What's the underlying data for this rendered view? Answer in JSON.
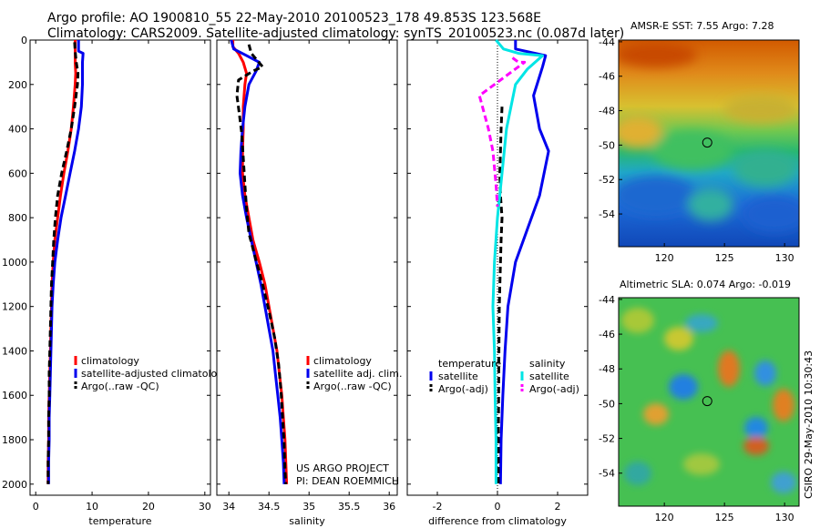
{
  "figure": {
    "title_line1": "Argo profile: AO 1900810_55 22-May-2010 20100523_178 49.853S 123.568E",
    "title_line2": "Climatology: CARS2009. Satellite-adjusted climatology: synTS_20100523.nc (0.087d later)",
    "credit_line1": "US ARGO PROJECT",
    "credit_line2": "PI: DEAN ROEMMICH",
    "timestamp": "CSIRO 29-May-2010 10:30:43"
  },
  "colors": {
    "climatology": "#ff0000",
    "satellite_adjusted": "#0000ee",
    "argo": "#000000",
    "temperature_diff_satellite": "#0000ee",
    "temperature_diff_argo": "#000000",
    "salinity_diff_satellite": "#00e5e5",
    "salinity_diff_argo": "#ff00ff"
  },
  "chart_data": [
    {
      "type": "line",
      "xlabel": "temperature",
      "ylabel": "",
      "xlim": [
        -1,
        31
      ],
      "ylim": [
        2050,
        0
      ],
      "xticks": [
        0,
        10,
        20,
        30
      ],
      "yticks": [
        0,
        200,
        400,
        600,
        800,
        1000,
        1200,
        1400,
        1600,
        1800,
        2000
      ],
      "legend": [
        "climatology",
        "satellite-adjusted climatolo",
        "Argo(..raw -QC)"
      ],
      "series": [
        {
          "name": "climatology",
          "style": "solid",
          "colorKey": "climatology",
          "points": [
            [
              7.0,
              0
            ],
            [
              7.0,
              50
            ],
            [
              7.0,
              100
            ],
            [
              7.1,
              150
            ],
            [
              7.0,
              200
            ],
            [
              6.7,
              300
            ],
            [
              6.3,
              400
            ],
            [
              5.7,
              500
            ],
            [
              5.0,
              600
            ],
            [
              4.4,
              700
            ],
            [
              3.9,
              800
            ],
            [
              3.4,
              900
            ],
            [
              3.1,
              1000
            ],
            [
              2.9,
              1100
            ],
            [
              2.8,
              1200
            ],
            [
              2.7,
              1300
            ],
            [
              2.6,
              1400
            ],
            [
              2.5,
              1500
            ],
            [
              2.4,
              1600
            ],
            [
              2.3,
              1700
            ],
            [
              2.3,
              1800
            ],
            [
              2.2,
              1900
            ],
            [
              2.2,
              2000
            ]
          ]
        },
        {
          "name": "satellite-adjusted climatolo",
          "style": "solid",
          "colorKey": "satellite_adjusted",
          "points": [
            [
              7.6,
              0
            ],
            [
              7.6,
              50
            ],
            [
              8.4,
              60
            ],
            [
              8.3,
              100
            ],
            [
              8.3,
              200
            ],
            [
              8.1,
              300
            ],
            [
              7.6,
              400
            ],
            [
              6.9,
              500
            ],
            [
              6.1,
              600
            ],
            [
              5.3,
              700
            ],
            [
              4.5,
              800
            ],
            [
              3.9,
              900
            ],
            [
              3.4,
              1000
            ],
            [
              3.1,
              1100
            ],
            [
              2.9,
              1200
            ],
            [
              2.8,
              1300
            ],
            [
              2.7,
              1400
            ],
            [
              2.6,
              1500
            ],
            [
              2.5,
              1600
            ],
            [
              2.4,
              1700
            ],
            [
              2.4,
              1800
            ],
            [
              2.3,
              1900
            ],
            [
              2.3,
              2000
            ]
          ]
        },
        {
          "name": "Argo(..raw -QC)",
          "style": "dashed",
          "colorKey": "argo",
          "points": [
            [
              6.9,
              10
            ],
            [
              7.0,
              50
            ],
            [
              7.2,
              100
            ],
            [
              7.5,
              150
            ],
            [
              7.4,
              200
            ],
            [
              6.9,
              300
            ],
            [
              6.3,
              400
            ],
            [
              5.5,
              500
            ],
            [
              4.6,
              600
            ],
            [
              3.9,
              700
            ],
            [
              3.5,
              800
            ],
            [
              3.2,
              900
            ],
            [
              3.0,
              1000
            ],
            [
              2.8,
              1100
            ],
            [
              2.7,
              1200
            ],
            [
              2.6,
              1300
            ],
            [
              2.5,
              1400
            ],
            [
              2.4,
              1500
            ],
            [
              2.4,
              1600
            ],
            [
              2.3,
              1700
            ],
            [
              2.3,
              1800
            ],
            [
              2.2,
              1900
            ],
            [
              2.2,
              2000
            ]
          ]
        }
      ]
    },
    {
      "type": "line",
      "xlabel": "salinity",
      "ylabel": "",
      "xlim": [
        33.85,
        36.1
      ],
      "ylim": [
        2050,
        0
      ],
      "xticks": [
        34,
        34.5,
        35,
        35.5,
        36
      ],
      "yticks": [
        0,
        200,
        400,
        600,
        800,
        1000,
        1200,
        1400,
        1600,
        1800,
        2000
      ],
      "legend": [
        "climatology",
        "satellite adj. clim.",
        "Argo(..raw -QC)"
      ],
      "series": [
        {
          "name": "climatology",
          "style": "solid",
          "colorKey": "climatology",
          "points": [
            [
              34.05,
              0
            ],
            [
              34.05,
              30
            ],
            [
              34.12,
              60
            ],
            [
              34.18,
              100
            ],
            [
              34.22,
              150
            ],
            [
              34.2,
              200
            ],
            [
              34.18,
              300
            ],
            [
              34.18,
              400
            ],
            [
              34.17,
              500
            ],
            [
              34.17,
              600
            ],
            [
              34.2,
              700
            ],
            [
              34.25,
              800
            ],
            [
              34.3,
              900
            ],
            [
              34.38,
              1000
            ],
            [
              34.45,
              1100
            ],
            [
              34.5,
              1200
            ],
            [
              34.55,
              1300
            ],
            [
              34.6,
              1400
            ],
            [
              34.63,
              1500
            ],
            [
              34.66,
              1600
            ],
            [
              34.68,
              1700
            ],
            [
              34.7,
              1800
            ],
            [
              34.71,
              1900
            ],
            [
              34.72,
              2000
            ]
          ]
        },
        {
          "name": "satellite adj. clim.",
          "style": "solid",
          "colorKey": "satellite_adjusted",
          "points": [
            [
              34.03,
              0
            ],
            [
              34.06,
              40
            ],
            [
              34.22,
              70
            ],
            [
              34.38,
              100
            ],
            [
              34.34,
              140
            ],
            [
              34.25,
              200
            ],
            [
              34.2,
              300
            ],
            [
              34.17,
              400
            ],
            [
              34.15,
              500
            ],
            [
              34.14,
              600
            ],
            [
              34.17,
              700
            ],
            [
              34.22,
              800
            ],
            [
              34.28,
              900
            ],
            [
              34.34,
              1000
            ],
            [
              34.4,
              1100
            ],
            [
              34.45,
              1200
            ],
            [
              34.5,
              1300
            ],
            [
              34.55,
              1400
            ],
            [
              34.58,
              1500
            ],
            [
              34.61,
              1600
            ],
            [
              34.64,
              1700
            ],
            [
              34.66,
              1800
            ],
            [
              34.68,
              1900
            ],
            [
              34.69,
              2000
            ]
          ]
        },
        {
          "name": "Argo(..raw -QC)",
          "style": "dashed",
          "colorKey": "argo",
          "points": [
            [
              34.25,
              20
            ],
            [
              34.28,
              60
            ],
            [
              34.42,
              120
            ],
            [
              34.3,
              140
            ],
            [
              34.12,
              180
            ],
            [
              34.1,
              250
            ],
            [
              34.13,
              330
            ],
            [
              34.16,
              420
            ],
            [
              34.18,
              530
            ],
            [
              34.2,
              650
            ],
            [
              34.22,
              760
            ],
            [
              34.25,
              870
            ],
            [
              34.33,
              980
            ],
            [
              34.42,
              1100
            ],
            [
              34.5,
              1220
            ],
            [
              34.57,
              1340
            ],
            [
              34.62,
              1460
            ],
            [
              34.65,
              1580
            ],
            [
              34.67,
              1700
            ],
            [
              34.69,
              1820
            ],
            [
              34.7,
              1940
            ],
            [
              34.71,
              2000
            ]
          ]
        }
      ]
    },
    {
      "type": "line",
      "xlabel": "difference from climatology",
      "ylabel": "",
      "xlim": [
        -3,
        3
      ],
      "ylim": [
        2050,
        0
      ],
      "xticks": [
        -2,
        0,
        2
      ],
      "yticks": [
        0,
        200,
        400,
        600,
        800,
        1000,
        1200,
        1400,
        1600,
        1800,
        2000
      ],
      "legend_groups": [
        {
          "title": "temperature",
          "items": [
            "satellite",
            "Argo(-adj)"
          ]
        },
        {
          "title": "salinity",
          "items": [
            "satellite",
            "Argo(-adj)"
          ]
        }
      ],
      "series": [
        {
          "name": "temperature satellite",
          "style": "solid",
          "colorKey": "temperature_diff_satellite",
          "points": [
            [
              0.6,
              0
            ],
            [
              0.6,
              40
            ],
            [
              1.6,
              70
            ],
            [
              1.5,
              120
            ],
            [
              1.2,
              250
            ],
            [
              1.4,
              400
            ],
            [
              1.7,
              500
            ],
            [
              1.4,
              700
            ],
            [
              1.0,
              850
            ],
            [
              0.6,
              1000
            ],
            [
              0.35,
              1200
            ],
            [
              0.25,
              1400
            ],
            [
              0.18,
              1600
            ],
            [
              0.12,
              1800
            ],
            [
              0.1,
              2000
            ]
          ]
        },
        {
          "name": "temperature Argo(-adj)",
          "style": "dashed",
          "colorKey": "temperature_diff_argo",
          "points": [
            [
              0.15,
              300
            ],
            [
              0.12,
              400
            ],
            [
              0.1,
              500
            ],
            [
              0.08,
              600
            ],
            [
              0.1,
              700
            ],
            [
              0.15,
              800
            ],
            [
              0.12,
              900
            ],
            [
              0.1,
              1000
            ],
            [
              0.06,
              1200
            ],
            [
              0.05,
              1400
            ],
            [
              0.04,
              1600
            ],
            [
              0.03,
              1800
            ],
            [
              0.03,
              2000
            ]
          ]
        },
        {
          "name": "salinity satellite",
          "style": "solid",
          "colorKey": "salinity_diff_satellite",
          "points": [
            [
              -0.05,
              0
            ],
            [
              0.2,
              40
            ],
            [
              0.7,
              60
            ],
            [
              1.5,
              70
            ],
            [
              1.0,
              130
            ],
            [
              0.6,
              200
            ],
            [
              0.3,
              400
            ],
            [
              0.15,
              600
            ],
            [
              0.0,
              800
            ],
            [
              -0.1,
              1000
            ],
            [
              -0.15,
              1200
            ],
            [
              -0.1,
              1400
            ],
            [
              -0.08,
              1600
            ],
            [
              -0.05,
              1800
            ],
            [
              -0.05,
              2000
            ]
          ]
        },
        {
          "name": "salinity Argo(-adj)",
          "style": "dashed",
          "colorKey": "salinity_diff_argo",
          "points": [
            [
              0.5,
              80
            ],
            [
              0.7,
              100
            ],
            [
              0.9,
              100
            ],
            [
              -0.6,
              250
            ],
            [
              -0.5,
              300
            ],
            [
              -0.3,
              400
            ],
            [
              -0.15,
              500
            ],
            [
              -0.05,
              650
            ],
            [
              0.0,
              750
            ]
          ]
        }
      ]
    }
  ],
  "maps": [
    {
      "title": "AMSR-E SST: 7.55 Argo: 7.28",
      "xticks": [
        120,
        125,
        130
      ],
      "yticks": [
        -44,
        -46,
        -48,
        -50,
        -52,
        -54
      ],
      "xlim": [
        116.2,
        131.2
      ],
      "ylim": [
        -55.9,
        -43.9
      ],
      "marker": {
        "lon": 123.568,
        "lat": -49.853
      },
      "type": "heatmap"
    },
    {
      "title": "Altimetric SLA: 0.074 Argo: -0.019",
      "xticks": [
        120,
        125,
        130
      ],
      "yticks": [
        -44,
        -46,
        -48,
        -50,
        -52,
        -54
      ],
      "xlim": [
        116.2,
        131.2
      ],
      "ylim": [
        -55.9,
        -43.9
      ],
      "marker": {
        "lon": 123.568,
        "lat": -49.853
      },
      "type": "heatmap"
    }
  ]
}
